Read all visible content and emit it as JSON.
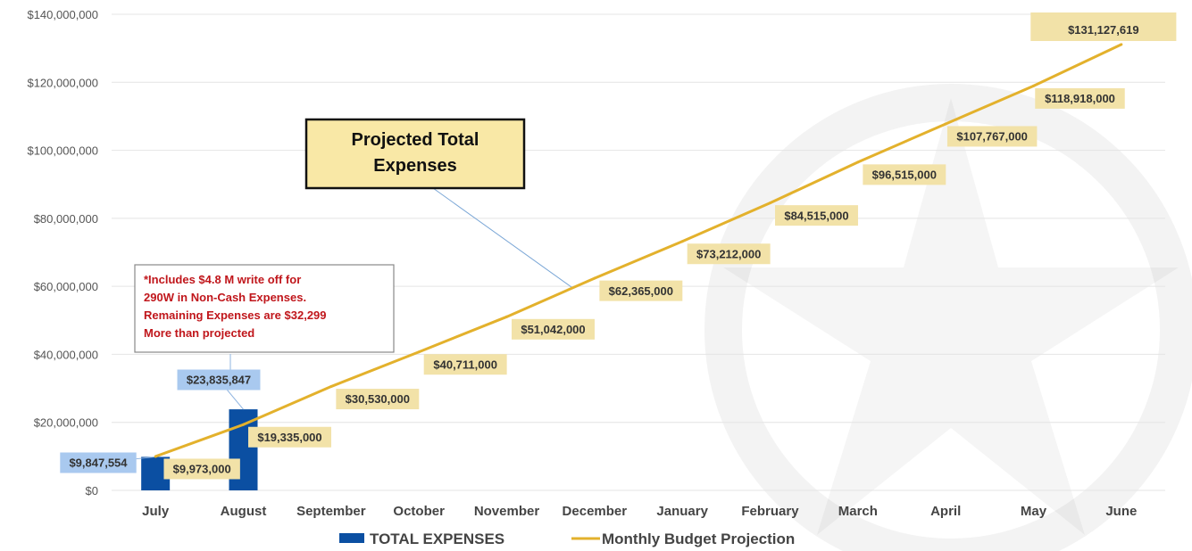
{
  "chart_data": {
    "type": "bar",
    "categories": [
      "July",
      "August",
      "September",
      "October",
      "November",
      "December",
      "January",
      "February",
      "March",
      "April",
      "May",
      "June"
    ],
    "series": [
      {
        "name": "TOTAL EXPENSES",
        "kind": "bar",
        "color": "#0b4fa2",
        "values": [
          9847554,
          23835847,
          null,
          null,
          null,
          null,
          null,
          null,
          null,
          null,
          null,
          null
        ],
        "labels": [
          "$9,847,554",
          "$23,835,847"
        ]
      },
      {
        "name": "Monthly Budget Projection",
        "kind": "line",
        "color": "#e3b12c",
        "values": [
          9973000,
          19335000,
          30530000,
          40711000,
          51042000,
          62365000,
          73212000,
          84515000,
          96515000,
          107767000,
          118918000,
          131127619
        ],
        "labels": [
          "$9,973,000",
          "$19,335,000",
          "$30,530,000",
          "$40,711,000",
          "$51,042,000",
          "$62,365,000",
          "$73,212,000",
          "$84,515,000",
          "$96,515,000",
          "$107,767,000",
          "$118,918,000",
          "$131,127,619"
        ]
      }
    ],
    "ylim": [
      0,
      140000000
    ],
    "yticks": [
      "$0",
      "$20,000,000",
      "$40,000,000",
      "$60,000,000",
      "$80,000,000",
      "$100,000,000",
      "$120,000,000",
      "$140,000,000"
    ],
    "grid": true,
    "legend": "bottom",
    "annotations": {
      "callout_lines": [
        "Projected Total",
        "Expenses"
      ],
      "note_lines": [
        "*Includes $4.8 M write off  for",
        "290W in Non-Cash Expenses.",
        "Remaining Expenses are $32,299",
        "More than projected"
      ]
    }
  },
  "colors": {
    "bar_label_bg": "#a9c9ef",
    "line_label_bg": "#f2e2a8",
    "callout_bg": "#f9e8a6",
    "grid": "#e4e4e4"
  }
}
